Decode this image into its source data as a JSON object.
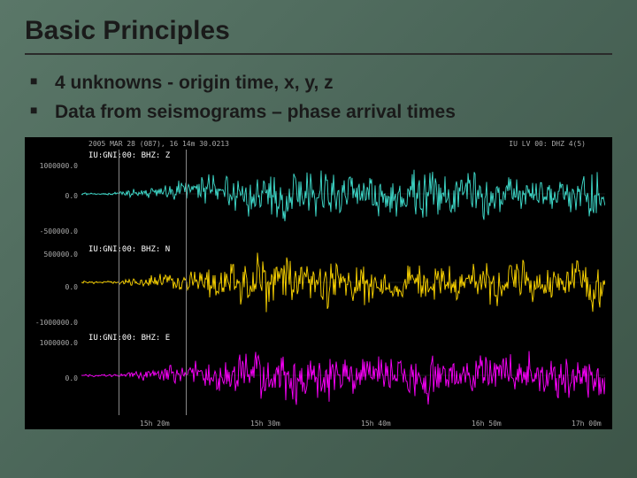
{
  "title": "Basic Principles",
  "bullets": [
    "4 unknowns - origin time, x, y, z",
    "Data from seismograms – phase arrival times"
  ],
  "seismogram": {
    "header_left": "2005 MAR 28 (087), 16 14m 30.0213",
    "header_right": "IU LV 00: DHZ 4(5)",
    "channels": [
      {
        "label": "IU:GNI:00: BHZ: Z",
        "color": "#40e0d0"
      },
      {
        "label": "IU:GNI:00: BHZ: N",
        "color": "#ffd700"
      },
      {
        "label": "IU:GNI:00: BHZ: E",
        "color": "#ff00ff"
      }
    ],
    "y_labels_top": {
      "upper": "1000000.0",
      "mid": "0.0",
      "lower": "-500000.0"
    },
    "y_labels_mid": {
      "upper": "500000.0",
      "mid": "0.0",
      "lower": "-1000000.0"
    },
    "y_labels_bot": {
      "upper": "1000000.0",
      "mid": "0.0"
    },
    "x_labels": [
      "15h 20m",
      "15h 30m",
      "15h 40m",
      "16h 50m",
      "17h 00m"
    ],
    "background": "#000000",
    "grid_color": "#666666"
  }
}
